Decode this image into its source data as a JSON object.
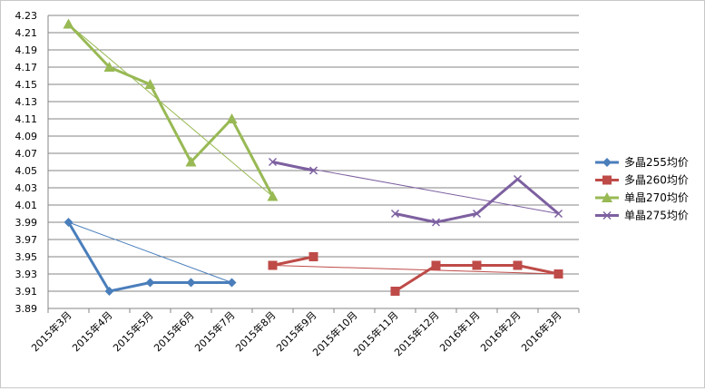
{
  "chart_data": {
    "type": "line",
    "title": "",
    "xlabel": "",
    "ylabel": "",
    "categories": [
      "2015年3月",
      "2015年4月",
      "2015年5月",
      "2015年6月",
      "2015年7月",
      "2015年8月",
      "2015年9月",
      "2015年10月",
      "2015年11月",
      "2015年12月",
      "2016年1月",
      "2016年2月",
      "2016年3月"
    ],
    "ylim": [
      3.89,
      4.23
    ],
    "yticks": [
      "4.23",
      "4.21",
      "4.19",
      "4.17",
      "4.15",
      "4.13",
      "4.11",
      "4.09",
      "4.07",
      "4.05",
      "4.03",
      "4.01",
      "3.99",
      "3.97",
      "3.95",
      "3.93",
      "3.91",
      "3.89"
    ],
    "grid": true,
    "legend_position": "right",
    "series": [
      {
        "name": "多晶255均价",
        "color": "#4a7ebb",
        "marker": "diamond",
        "values": [
          3.99,
          3.91,
          3.92,
          3.92,
          3.92,
          null,
          null,
          null,
          null,
          null,
          null,
          null,
          null
        ],
        "trendline": [
          [
            0,
            3.99
          ],
          [
            4,
            3.92
          ]
        ]
      },
      {
        "name": "多晶260均价",
        "color": "#be4b48",
        "marker": "square",
        "values": [
          null,
          null,
          null,
          null,
          null,
          3.94,
          3.95,
          null,
          3.91,
          3.94,
          3.94,
          3.94,
          3.93
        ],
        "trendline": [
          [
            5,
            3.94
          ],
          [
            12,
            3.93
          ]
        ]
      },
      {
        "name": "单晶270均价",
        "color": "#98b954",
        "marker": "triangle",
        "values": [
          4.22,
          4.17,
          4.15,
          4.06,
          4.11,
          4.02,
          null,
          null,
          null,
          null,
          null,
          null,
          null
        ],
        "trendline": [
          [
            0,
            4.22
          ],
          [
            5,
            4.02
          ]
        ]
      },
      {
        "name": "单晶275均价",
        "color": "#7d60a0",
        "marker": "x",
        "values": [
          null,
          null,
          null,
          null,
          null,
          4.06,
          4.05,
          null,
          4.0,
          3.99,
          4.0,
          4.04,
          4.0
        ],
        "trendline": [
          [
            5,
            4.06
          ],
          [
            12,
            4.0
          ]
        ]
      }
    ]
  }
}
